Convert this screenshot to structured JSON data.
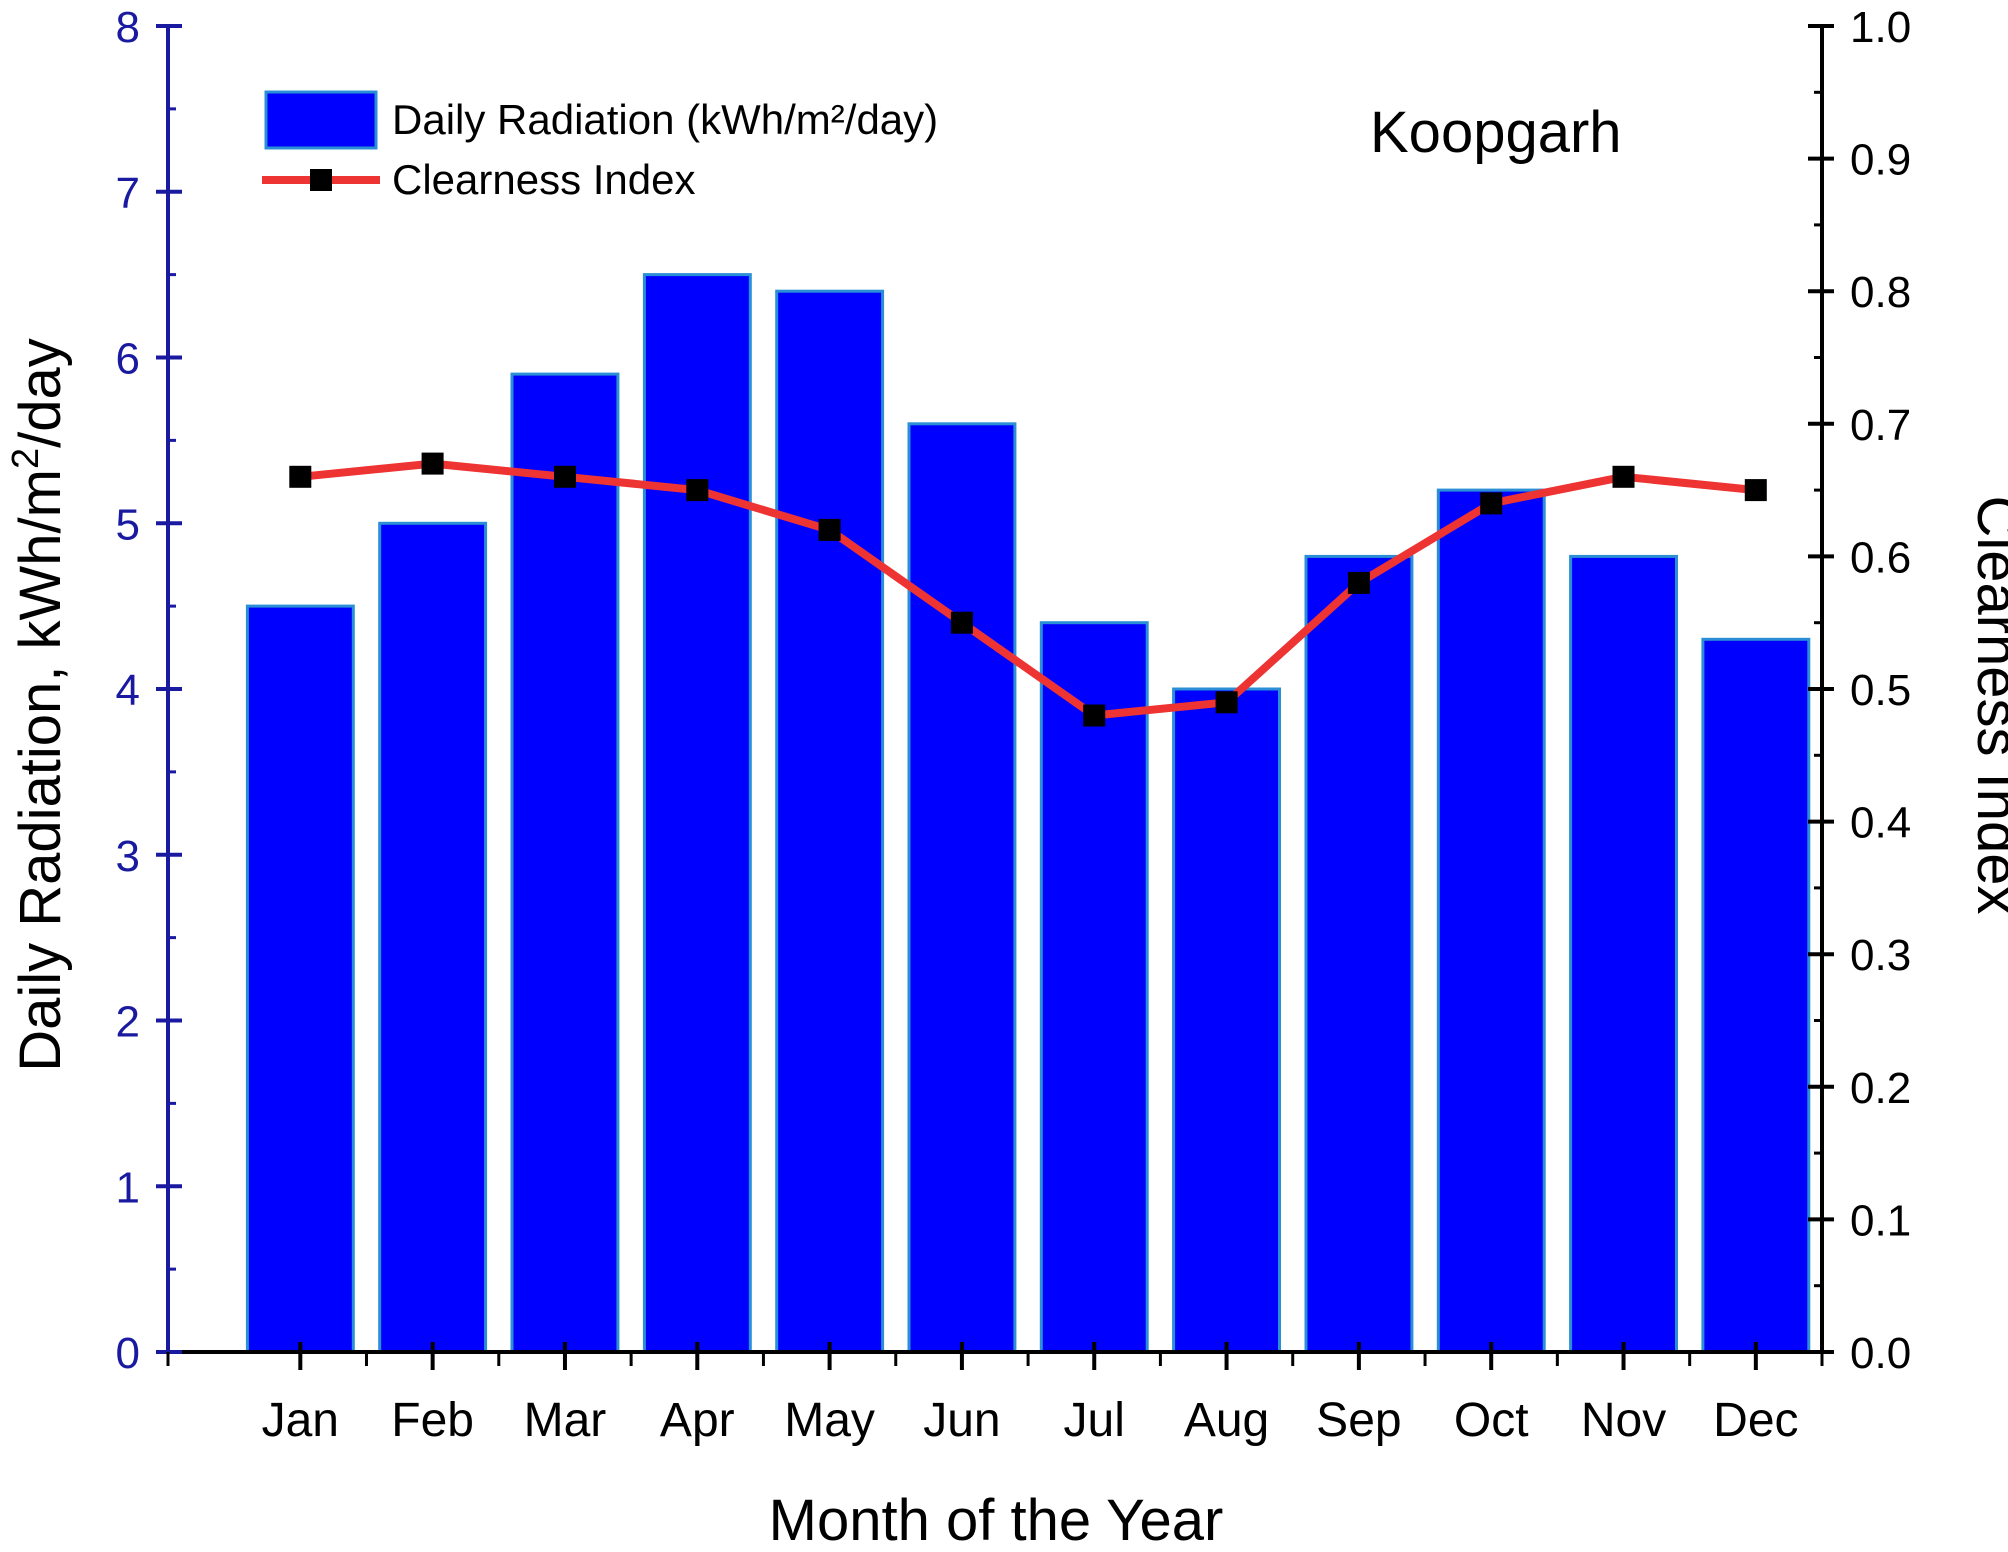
{
  "chart_data": {
    "type": "bar+line",
    "annotation": "Koopgarh",
    "categories": [
      "Jan",
      "Feb",
      "Mar",
      "Apr",
      "May",
      "Jun",
      "Jul",
      "Aug",
      "Sep",
      "Oct",
      "Nov",
      "Dec"
    ],
    "xlabel": "Month of the Year",
    "ylabel_left": {
      "pre": "Daily Radiation, kWh/m",
      "sup": "2",
      "post": "/day"
    },
    "ylabel_right": "Clearness Index",
    "ylim_left": [
      0,
      8
    ],
    "ylim_right": [
      0.0,
      1.0
    ],
    "left_ticks": [
      "0",
      "1",
      "2",
      "3",
      "4",
      "5",
      "6",
      "7",
      "8"
    ],
    "right_ticks": [
      "0.0",
      "0.1",
      "0.2",
      "0.3",
      "0.4",
      "0.5",
      "0.6",
      "0.7",
      "0.8",
      "0.9",
      "1.0"
    ],
    "grid": false,
    "legend_position": "top-left",
    "series": [
      {
        "name": "Daily Radiation (kWh/m²/day)",
        "type": "bar",
        "axis": "left",
        "color": "#0000ff",
        "values": [
          4.5,
          5.0,
          5.9,
          6.5,
          6.4,
          5.6,
          4.4,
          4.0,
          4.8,
          5.2,
          4.8,
          4.3
        ]
      },
      {
        "name": "Clearness Index",
        "type": "line",
        "axis": "right",
        "color": "#ee3333",
        "marker_color": "#000000",
        "values": [
          0.66,
          0.67,
          0.66,
          0.65,
          0.62,
          0.55,
          0.48,
          0.49,
          0.58,
          0.64,
          0.66,
          0.65
        ]
      }
    ],
    "colors": {
      "left_axis": "#1a1aa0",
      "right_axis": "#000000",
      "bar_edge": "#2a8fd6"
    }
  }
}
